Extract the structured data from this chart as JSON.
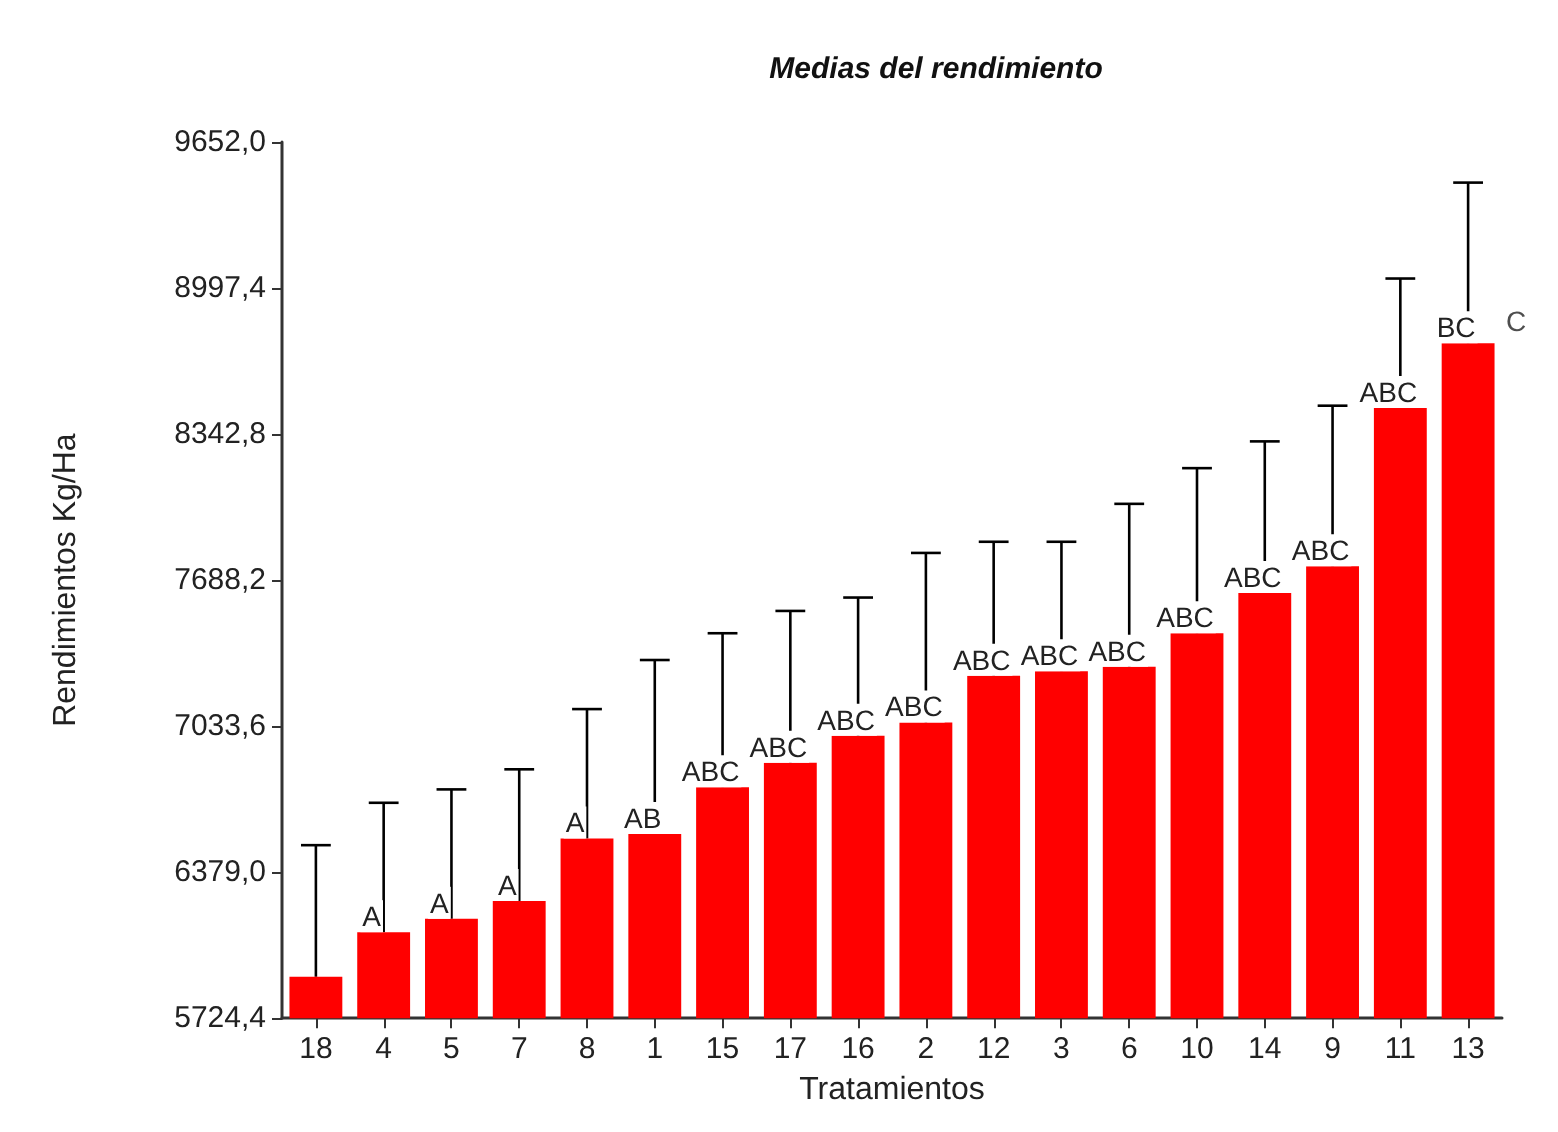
{
  "chart_data": {
    "type": "bar",
    "title": "Medias del rendimiento",
    "xlabel": "Tratamientos",
    "ylabel": "Rendimientos Kg/Ha",
    "categories": [
      "18",
      "4",
      "5",
      "7",
      "8",
      "1",
      "15",
      "17",
      "16",
      "2",
      "12",
      "3",
      "6",
      "10",
      "14",
      "9",
      "11",
      "13"
    ],
    "values": [
      5910,
      6110,
      6170,
      6250,
      6530,
      6550,
      6760,
      6870,
      6990,
      7050,
      7260,
      7280,
      7300,
      7450,
      7630,
      7750,
      8460,
      8750
    ],
    "errors": [
      [
        5910,
        6500
      ],
      [
        6110,
        6690
      ],
      [
        6170,
        6750
      ],
      [
        6250,
        6840
      ],
      [
        6530,
        7110
      ],
      [
        6550,
        7330
      ],
      [
        6760,
        7450
      ],
      [
        6870,
        7550
      ],
      [
        6990,
        7610
      ],
      [
        7050,
        7810
      ],
      [
        7260,
        7860
      ],
      [
        7280,
        7860
      ],
      [
        7300,
        8030
      ],
      [
        7450,
        8190
      ],
      [
        7630,
        8310
      ],
      [
        7750,
        8470
      ],
      [
        8460,
        9040
      ],
      [
        8750,
        9470
      ]
    ],
    "value_labels": [
      null,
      "A",
      "A",
      "A",
      "A",
      "AB",
      "ABC",
      "ABC",
      "ABC",
      "ABC",
      "ABC",
      "ABC",
      "ABC",
      "ABC",
      "ABC",
      "ABC",
      "ABC",
      "BC"
    ],
    "annotations": [
      {
        "text": "C",
        "x": "13",
        "y": 8850
      }
    ],
    "color": "#ff0000",
    "ylim": [
      5724.4,
      9652.0
    ],
    "yticks": [
      {
        "value": 5724.4,
        "label": "5724,4"
      },
      {
        "value": 6379.0,
        "label": "6379,0"
      },
      {
        "value": 7033.6,
        "label": "7033,6"
      },
      {
        "value": 7688.2,
        "label": "7688,2"
      },
      {
        "value": 8342.8,
        "label": "8342,8"
      },
      {
        "value": 8997.4,
        "label": "8997,4"
      },
      {
        "value": 9652.0,
        "label": "9652,0"
      }
    ],
    "grid": false
  }
}
